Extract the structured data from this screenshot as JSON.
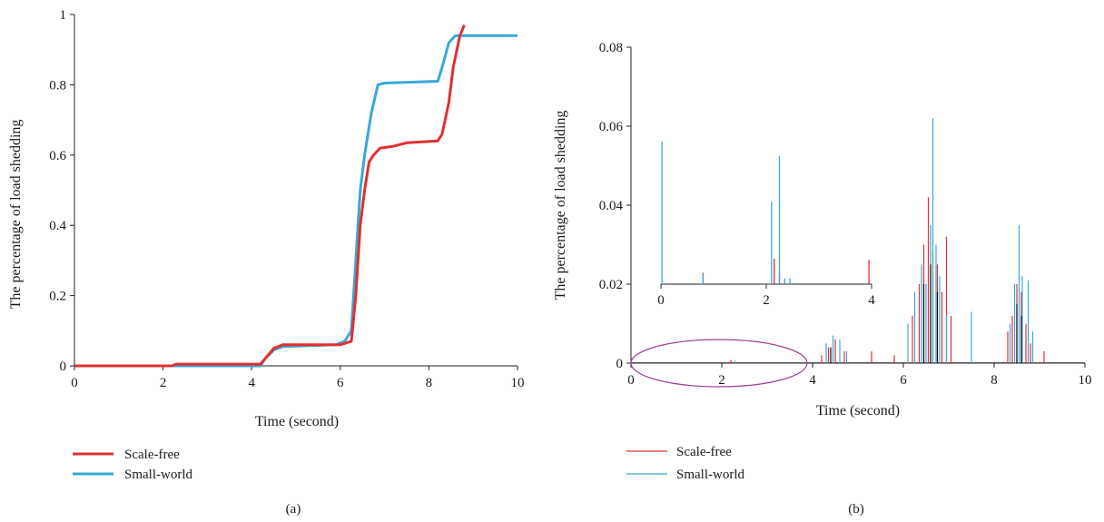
{
  "colors": {
    "scale_free": "#e03030",
    "small_world": "#3aa8d8",
    "ellipse": "#a04090",
    "black": "#111111"
  },
  "chart_data": [
    {
      "panel": "(a)",
      "type": "line",
      "xlabel": "Time (second)",
      "ylabel": "The percentage of load shedding",
      "xlim": [
        0,
        10
      ],
      "ylim": [
        0,
        1
      ],
      "xticks": [
        "0",
        "2",
        "4",
        "6",
        "8",
        "10"
      ],
      "yticks": [
        "0",
        "0.2",
        "0.4",
        "0.6",
        "0.8",
        "1"
      ],
      "grid": false,
      "legend": "bottom-left",
      "series": [
        {
          "name": "Scale-free",
          "color": "#e03030",
          "x": [
            0,
            2.2,
            2.3,
            4.2,
            4.3,
            4.5,
            4.7,
            6.0,
            6.25,
            6.35,
            6.45,
            6.55,
            6.65,
            6.75,
            6.9,
            7.2,
            7.5,
            8.2,
            8.3,
            8.45,
            8.55,
            8.7,
            8.8
          ],
          "y": [
            0,
            0,
            0.005,
            0.005,
            0.02,
            0.05,
            0.06,
            0.06,
            0.07,
            0.2,
            0.4,
            0.5,
            0.58,
            0.6,
            0.62,
            0.625,
            0.635,
            0.64,
            0.66,
            0.75,
            0.85,
            0.94,
            0.97
          ]
        },
        {
          "name": "Small-world",
          "color": "#3aa8d8",
          "x": [
            0,
            4.2,
            4.3,
            4.5,
            4.7,
            5.9,
            6.0,
            6.1,
            6.25,
            6.35,
            6.45,
            6.55,
            6.7,
            6.85,
            7.0,
            8.2,
            8.3,
            8.45,
            8.6,
            9.0,
            10.0
          ],
          "y": [
            0,
            0,
            0.02,
            0.045,
            0.055,
            0.06,
            0.065,
            0.07,
            0.1,
            0.3,
            0.5,
            0.6,
            0.72,
            0.8,
            0.805,
            0.81,
            0.85,
            0.92,
            0.94,
            0.94,
            0.94
          ]
        }
      ]
    },
    {
      "panel": "(b)",
      "type": "line",
      "xlabel": "Time (second)",
      "ylabel": "The percentage of load  shedding",
      "xlim": [
        0,
        10
      ],
      "ylim": [
        0,
        0.08
      ],
      "xticks": [
        "0",
        "2",
        "4",
        "6",
        "8",
        "10"
      ],
      "yticks": [
        "0",
        "0.02",
        "0.04",
        "0.06",
        "0.08"
      ],
      "grid": false,
      "legend": "bottom-left",
      "series": [
        {
          "name": "Scale-free",
          "color": "#e03030",
          "spikes": [
            [
              2.2,
              0.0008
            ],
            [
              4.2,
              0.002
            ],
            [
              4.35,
              0.004
            ],
            [
              4.5,
              0.006
            ],
            [
              4.7,
              0.003
            ],
            [
              5.3,
              0.003
            ],
            [
              5.8,
              0.002
            ],
            [
              6.2,
              0.012
            ],
            [
              6.35,
              0.02
            ],
            [
              6.45,
              0.03
            ],
            [
              6.55,
              0.042
            ],
            [
              6.65,
              0.028
            ],
            [
              6.75,
              0.025
            ],
            [
              6.85,
              0.018
            ],
            [
              6.95,
              0.032
            ],
            [
              7.05,
              0.012
            ],
            [
              8.3,
              0.008
            ],
            [
              8.4,
              0.012
            ],
            [
              8.5,
              0.02
            ],
            [
              8.6,
              0.018
            ],
            [
              8.7,
              0.01
            ],
            [
              8.8,
              0.005
            ],
            [
              9.1,
              0.003
            ]
          ]
        },
        {
          "name": "Small-world",
          "color": "#3aa8d8",
          "spikes": [
            [
              2.3,
              0.0006
            ],
            [
              4.3,
              0.005
            ],
            [
              4.45,
              0.007
            ],
            [
              4.6,
              0.006
            ],
            [
              4.75,
              0.003
            ],
            [
              6.1,
              0.01
            ],
            [
              6.25,
              0.018
            ],
            [
              6.4,
              0.025
            ],
            [
              6.5,
              0.02
            ],
            [
              6.6,
              0.035
            ],
            [
              6.65,
              0.062
            ],
            [
              6.72,
              0.03
            ],
            [
              6.8,
              0.022
            ],
            [
              6.95,
              0.012
            ],
            [
              7.5,
              0.013
            ],
            [
              8.35,
              0.01
            ],
            [
              8.45,
              0.02
            ],
            [
              8.55,
              0.035
            ],
            [
              8.62,
              0.022
            ],
            [
              8.75,
              0.021
            ],
            [
              8.85,
              0.008
            ]
          ]
        },
        {
          "name": "",
          "color": "#111111",
          "spikes": [
            [
              4.4,
              0.004
            ],
            [
              6.45,
              0.02
            ],
            [
              6.6,
              0.025
            ],
            [
              6.75,
              0.018
            ],
            [
              8.5,
              0.015
            ],
            [
              8.6,
              0.012
            ]
          ]
        }
      ],
      "inset": {
        "xlim": [
          0,
          4
        ],
        "ylim": [
          0,
          0.052
        ],
        "xticks": [
          "0",
          "2",
          "4"
        ],
        "series": [
          {
            "name": "Scale-free",
            "color": "#e03030",
            "spikes": [
              [
                0.8,
                0.004
              ],
              [
                2.15,
                0.009
              ],
              [
                2.25,
                0.004
              ],
              [
                3.95,
                0.0085
              ]
            ]
          },
          {
            "name": "Small-world",
            "color": "#3aa8d8",
            "spikes": [
              [
                0.02,
                0.05
              ],
              [
                0.8,
                0.0035
              ],
              [
                2.1,
                0.029
              ],
              [
                2.25,
                0.045
              ],
              [
                2.35,
                0.002
              ],
              [
                2.45,
                0.002
              ]
            ]
          }
        ]
      }
    }
  ],
  "captions": {
    "a": "(a)",
    "b": "(b)"
  }
}
